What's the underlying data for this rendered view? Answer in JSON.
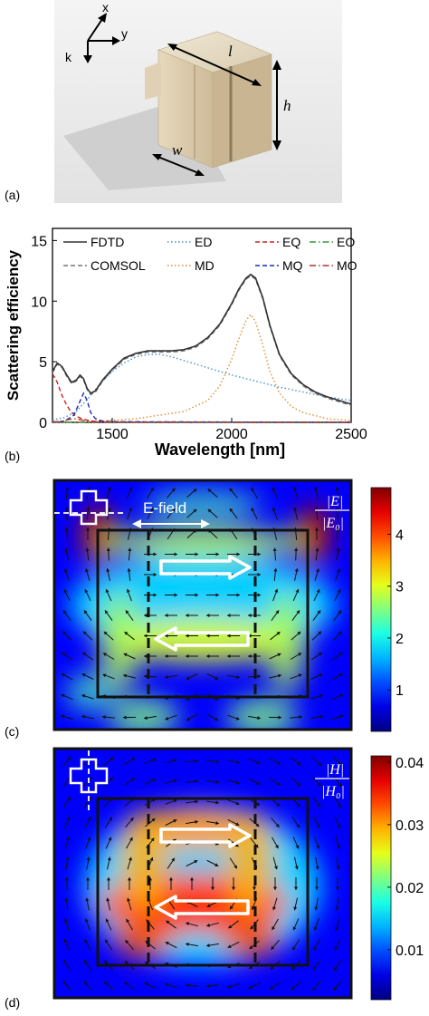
{
  "panels": {
    "a": {
      "label": "(a)",
      "axes": {
        "x": "x",
        "y": "y",
        "k": "k"
      },
      "dims": {
        "l": "l",
        "h": "h",
        "w": "w"
      }
    },
    "b": {
      "label": "(b)",
      "chart_data": {
        "type": "line",
        "title": "",
        "xlabel": "Wavelength [nm]",
        "ylabel": "Scattering efficiency",
        "xlim": [
          1250,
          2500
        ],
        "ylim": [
          0,
          16
        ],
        "x_ticks": [
          1500,
          2000,
          2500
        ],
        "y_ticks": [
          0,
          5,
          10,
          15
        ],
        "legend_position": "top",
        "series": [
          {
            "name": "FDTD",
            "color": "#333333",
            "style": "solid",
            "x": [
              1250,
              1270,
              1290,
              1310,
              1330,
              1350,
              1365,
              1380,
              1395,
              1410,
              1430,
              1460,
              1500,
              1550,
              1600,
              1650,
              1700,
              1750,
              1800,
              1850,
              1900,
              1950,
              2000,
              2030,
              2060,
              2080,
              2100,
              2130,
              2160,
              2200,
              2250,
              2300,
              2350,
              2400,
              2450,
              2500
            ],
            "y": [
              4.2,
              4.9,
              4.6,
              3.9,
              3.3,
              3.5,
              3.9,
              3.6,
              2.8,
              2.4,
              2.6,
              3.5,
              4.4,
              5.3,
              5.7,
              5.9,
              5.9,
              5.9,
              6.0,
              6.3,
              7.0,
              8.1,
              9.8,
              11.0,
              11.9,
              12.2,
              11.9,
              10.3,
              8.0,
              5.6,
              4.0,
              3.1,
              2.5,
              2.1,
              1.8,
              1.5
            ]
          },
          {
            "name": "COMSOL",
            "color": "#777777",
            "style": "dashed",
            "x": [
              1250,
              1270,
              1290,
              1310,
              1330,
              1350,
              1365,
              1380,
              1395,
              1410,
              1430,
              1460,
              1500,
              1550,
              1600,
              1650,
              1700,
              1750,
              1800,
              1850,
              1900,
              1950,
              2000,
              2030,
              2060,
              2080,
              2100,
              2130,
              2160,
              2200,
              2250,
              2300,
              2350,
              2400,
              2450,
              2500
            ],
            "y": [
              4.1,
              4.8,
              4.5,
              3.8,
              3.2,
              3.4,
              3.8,
              3.5,
              2.7,
              2.3,
              2.5,
              3.4,
              4.3,
              5.2,
              5.6,
              5.8,
              5.8,
              5.8,
              5.9,
              6.2,
              6.9,
              8.0,
              9.7,
              10.9,
              11.8,
              12.1,
              11.8,
              10.2,
              7.9,
              5.5,
              3.9,
              3.0,
              2.4,
              2.0,
              1.7,
              1.4
            ]
          },
          {
            "name": "ED",
            "color": "#4a90c8",
            "style": "dotted",
            "x": [
              1250,
              1300,
              1350,
              1400,
              1450,
              1500,
              1550,
              1600,
              1650,
              1700,
              1750,
              1800,
              1900,
              2000,
              2100,
              2200,
              2300,
              2400,
              2500
            ],
            "y": [
              0.2,
              0.4,
              0.9,
              2.0,
              3.2,
              4.2,
              4.9,
              5.4,
              5.6,
              5.6,
              5.4,
              5.1,
              4.5,
              3.9,
              3.4,
              2.9,
              2.5,
              2.1,
              1.8
            ]
          },
          {
            "name": "MD",
            "color": "#e08a2c",
            "style": "dotted",
            "x": [
              1250,
              1400,
              1600,
              1800,
              1900,
              1950,
              2000,
              2030,
              2060,
              2080,
              2100,
              2130,
              2160,
              2200,
              2250,
              2300,
              2400,
              2500
            ],
            "y": [
              0.0,
              0.05,
              0.3,
              0.9,
              1.8,
              3.0,
              5.2,
              6.9,
              8.4,
              8.9,
              8.3,
              6.4,
              4.2,
              2.4,
              1.3,
              0.8,
              0.3,
              0.15
            ]
          },
          {
            "name": "EQ",
            "color": "#cc2222",
            "style": "dashed",
            "x": [
              1250,
              1270,
              1290,
              1310,
              1330,
              1350,
              1380,
              1420,
              1500,
              1600,
              2500
            ],
            "y": [
              4.0,
              3.3,
              2.2,
              1.4,
              0.8,
              0.5,
              0.25,
              0.1,
              0.05,
              0.02,
              0.0
            ]
          },
          {
            "name": "MQ",
            "color": "#1a2bbf",
            "style": "dashed",
            "x": [
              1250,
              1300,
              1340,
              1360,
              1380,
              1395,
              1410,
              1430,
              1460,
              1500,
              2500
            ],
            "y": [
              0.0,
              0.1,
              0.6,
              1.5,
              2.4,
              1.8,
              0.8,
              0.3,
              0.1,
              0.05,
              0.0
            ]
          },
          {
            "name": "EO",
            "color": "#2f9a3a",
            "style": "dashdot",
            "x": [
              1250,
              1300,
              1350,
              1400,
              2500
            ],
            "y": [
              0.05,
              0.02,
              0.01,
              0.0,
              0.0
            ]
          },
          {
            "name": "MO",
            "color": "#b03030",
            "style": "dashdot",
            "x": [
              1250,
              1290,
              1320,
              1350,
              1380,
              1420,
              2500
            ],
            "y": [
              0.02,
              0.1,
              0.25,
              0.3,
              0.15,
              0.02,
              0.0
            ]
          }
        ]
      }
    },
    "c": {
      "label": "(c)",
      "field_label": "E-field",
      "ratio_num": "|E|",
      "ratio_den": "|E₀|",
      "colorbar_ticks": [
        "1",
        "2",
        "3",
        "4"
      ],
      "colorbar_values": [
        1,
        2,
        3,
        4
      ],
      "colorbar_range": [
        0.2,
        4.9
      ]
    },
    "d": {
      "label": "(d)",
      "ratio_num": "|H|",
      "ratio_den": "|H₀|",
      "colorbar_ticks": [
        "0.01",
        "0.02",
        "0.03",
        "0.04"
      ],
      "colorbar_values": [
        0.01,
        0.02,
        0.03,
        0.04
      ],
      "colorbar_range": [
        0.002,
        0.041
      ]
    }
  },
  "colors": {
    "jet_low": "#1a1aa0",
    "jet_mid": "#3ab7e8",
    "jet_high": "#8b0000",
    "frame": "#111111"
  }
}
